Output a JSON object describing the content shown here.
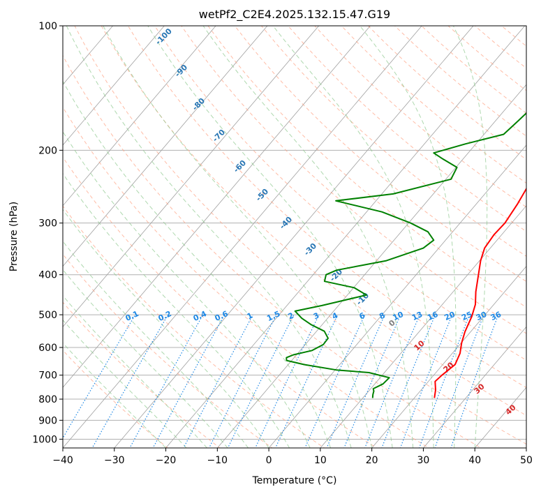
{
  "chart_data": {
    "type": "line",
    "title": "wetPf2_C2E4.2025.132.15.47.G19",
    "xlabel": "Temperature (°C)",
    "ylabel": "Pressure (hPa)",
    "xlim": [
      -40,
      50
    ],
    "ylim": [
      1050,
      100
    ],
    "y_scale": "log",
    "x_ticks": [
      -40,
      -30,
      -20,
      -10,
      0,
      10,
      20,
      30,
      40,
      50
    ],
    "x_tick_labels": [
      "−40",
      "−30",
      "−20",
      "−10",
      "0",
      "10",
      "20",
      "30",
      "40",
      "50"
    ],
    "y_ticks": [
      100,
      200,
      300,
      400,
      500,
      600,
      700,
      800,
      900,
      1000
    ],
    "y_tick_labels": [
      "100",
      "200",
      "300",
      "400",
      "500",
      "600",
      "700",
      "800",
      "900",
      "1000"
    ],
    "grid": true,
    "colors": {
      "temperature": "#ff0000",
      "dewpoint": "#008000",
      "isotherms": "#a0a0a0",
      "dry_adiabats": "#ff9f80",
      "moist_adiabats": "#8cc88c",
      "mixing_ratio": "#1e88e5",
      "moist_label": "#2876b4",
      "zero_label": "#808080",
      "dry_label": "#d62728"
    },
    "series": [
      {
        "key": "temperature",
        "points": [
          [
            23.9,
            795
          ],
          [
            22.8,
            760
          ],
          [
            21.3,
            725
          ],
          [
            21.6,
            700
          ],
          [
            22.4,
            660
          ],
          [
            21.5,
            620
          ],
          [
            20.1,
            585
          ],
          [
            18.9,
            550
          ],
          [
            17.7,
            505
          ],
          [
            16.4,
            472
          ],
          [
            14.4,
            440
          ],
          [
            12.4,
            405
          ],
          [
            10.2,
            370
          ],
          [
            8.9,
            345
          ],
          [
            8.5,
            320
          ],
          [
            8.7,
            300
          ],
          [
            8.0,
            270
          ],
          [
            6.9,
            240
          ],
          [
            6.7,
            220
          ],
          [
            7.3,
            200
          ],
          [
            6.3,
            180
          ],
          [
            5.0,
            160
          ],
          [
            3.5,
            145
          ],
          [
            2.2,
            130
          ],
          [
            2.3,
            120
          ],
          [
            3.2,
            112
          ],
          [
            4.3,
            106
          ],
          [
            4.7,
            100
          ]
        ]
      },
      {
        "key": "dewpoint",
        "points": [
          [
            11.9,
            795
          ],
          [
            11.4,
            780
          ],
          [
            11.0,
            765
          ],
          [
            10.5,
            755
          ],
          [
            11.6,
            735
          ],
          [
            11.8,
            710
          ],
          [
            7.0,
            690
          ],
          [
            0.2,
            680
          ],
          [
            -6.9,
            660
          ],
          [
            -11.0,
            645
          ],
          [
            -11.5,
            635
          ],
          [
            -10.6,
            625
          ],
          [
            -7.7,
            610
          ],
          [
            -6.5,
            590
          ],
          [
            -6.6,
            570
          ],
          [
            -8.5,
            548
          ],
          [
            -12.2,
            528
          ],
          [
            -15.0,
            510
          ],
          [
            -17.5,
            490
          ],
          [
            -13.2,
            475
          ],
          [
            -6.3,
            448
          ],
          [
            -9.9,
            430
          ],
          [
            -16.7,
            415
          ],
          [
            -17.5,
            400
          ],
          [
            -16.2,
            390
          ],
          [
            -8.1,
            370
          ],
          [
            -3.0,
            345
          ],
          [
            -2.3,
            330
          ],
          [
            -4.8,
            315
          ],
          [
            -9.6,
            300
          ],
          [
            -17.0,
            282
          ],
          [
            -27.8,
            265
          ],
          [
            -17.8,
            255
          ],
          [
            -9.0,
            235
          ],
          [
            -9.8,
            220
          ],
          [
            -13.9,
            210
          ],
          [
            -16.7,
            203
          ],
          [
            -12.0,
            193
          ],
          [
            -6.2,
            183
          ],
          [
            -5.6,
            170
          ],
          [
            -4.7,
            150
          ],
          [
            -3.3,
            135
          ],
          [
            -1.9,
            125
          ],
          [
            -0.5,
            115
          ],
          [
            0.2,
            108
          ],
          [
            1.1,
            100
          ]
        ]
      }
    ],
    "moist_adiabat_labels": [
      "-100",
      "-90",
      "-80",
      "-70",
      "-60",
      "-50",
      "-40",
      "-30",
      "-20",
      "-10"
    ],
    "mixing_ratio_labels": [
      "0.1",
      "0.2",
      "0.4",
      "0.6",
      "1",
      "1.5",
      "2",
      "3",
      "4",
      "6",
      "8",
      "10",
      "13",
      "16",
      "20",
      "25",
      "30",
      "36"
    ],
    "dry_adiabat_labels": [
      "0",
      "10",
      "20",
      "30",
      "40"
    ]
  }
}
